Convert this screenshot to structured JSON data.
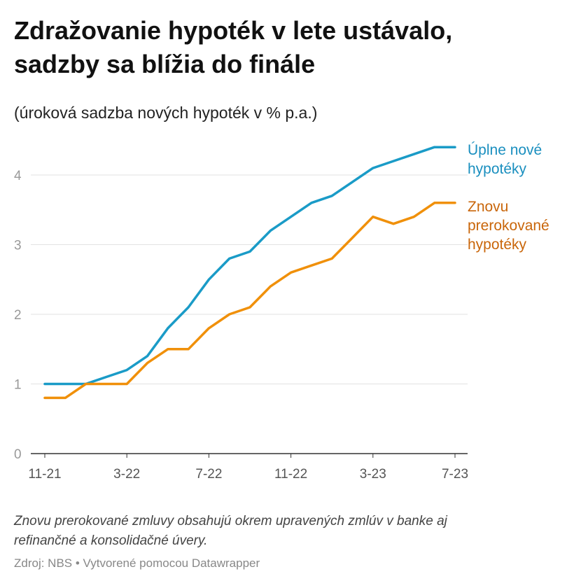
{
  "header": {
    "title_line1": "Zdražovanie hypoték v lete ustávalo,",
    "title_line2": "sadzby sa blížia do finále",
    "subtitle": "(úroková sadzba nových hypoték v % p.a.)"
  },
  "footer": {
    "notes_line1": "Znovu prerokované zmluvy obsahujú okrem upravených zmlúv v banke aj",
    "notes_line2": "refinančné a konsolidačné úvery.",
    "source": "Zdroj: NBS • Vytvorené pomocou Datawrapper"
  },
  "legend": {
    "new_line1": "Úplne nové",
    "new_line2": "hypotéky",
    "reneg_line1": "Znovu",
    "reneg_line2": "prerokované",
    "reneg_line3": "hypotéky"
  },
  "chart_data": {
    "type": "line",
    "x": [
      "11-21",
      "12-21",
      "1-22",
      "2-22",
      "3-22",
      "4-22",
      "5-22",
      "6-22",
      "7-22",
      "8-22",
      "9-22",
      "10-22",
      "11-22",
      "12-22",
      "1-23",
      "2-23",
      "3-23",
      "4-23",
      "5-23",
      "6-23",
      "7-23"
    ],
    "x_tick_labels": [
      "11-21",
      "3-22",
      "7-22",
      "11-22",
      "3-23",
      "7-23"
    ],
    "x_tick_positions": [
      "11-21",
      "3-22",
      "7-22",
      "11-22",
      "3-23",
      "7-23"
    ],
    "y_ticks": [
      "0",
      "1",
      "2",
      "3",
      "4"
    ],
    "ylim": [
      0,
      4.6
    ],
    "grid": true,
    "series": [
      {
        "name": "Úplne nové hypotéky",
        "color": "#1a9bc7",
        "values": [
          1.0,
          1.0,
          1.0,
          1.1,
          1.2,
          1.4,
          1.8,
          2.1,
          2.5,
          2.8,
          2.9,
          3.2,
          3.4,
          3.6,
          3.7,
          3.9,
          4.1,
          4.2,
          4.3,
          4.4,
          4.4
        ]
      },
      {
        "name": "Znovu prerokované hypotéky",
        "color": "#f0900a",
        "values": [
          0.8,
          0.8,
          1.0,
          1.0,
          1.0,
          1.3,
          1.5,
          1.5,
          1.8,
          2.0,
          2.1,
          2.4,
          2.6,
          2.7,
          2.8,
          3.1,
          3.4,
          3.3,
          3.4,
          3.6,
          3.6
        ]
      }
    ]
  }
}
